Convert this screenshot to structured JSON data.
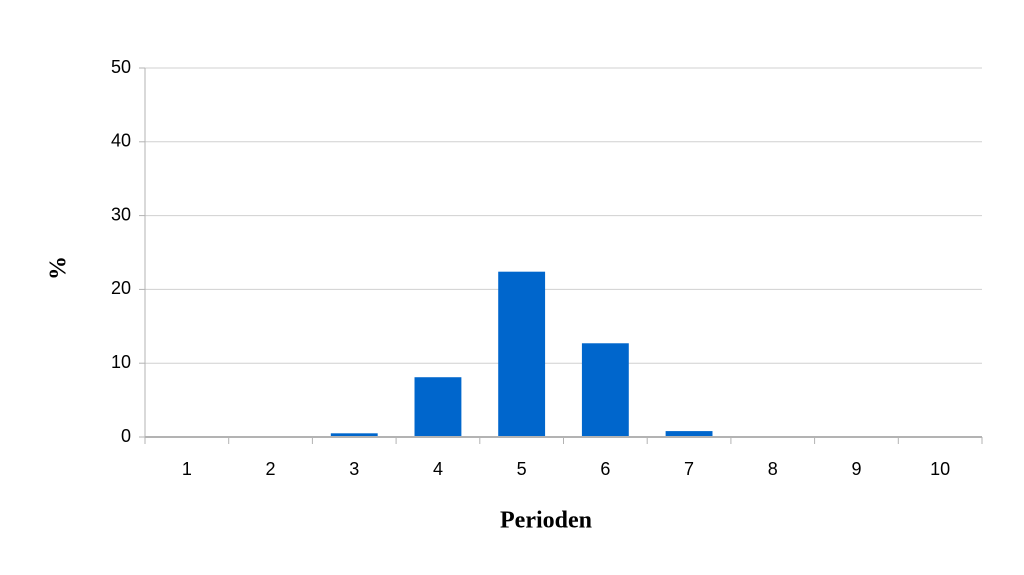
{
  "chart_data": {
    "type": "bar",
    "x_label": "Perioden",
    "y_label": "%",
    "categories": [
      "1",
      "2",
      "3",
      "4",
      "5",
      "6",
      "7",
      "8",
      "9",
      "10"
    ],
    "values": [
      0,
      0,
      0.5,
      8.1,
      22.4,
      12.7,
      0.8,
      0,
      0,
      0
    ],
    "color": "#0066cc",
    "ylim": [
      0,
      50
    ],
    "yticks": [
      0,
      10,
      20,
      30,
      40,
      50
    ],
    "grid": true
  }
}
